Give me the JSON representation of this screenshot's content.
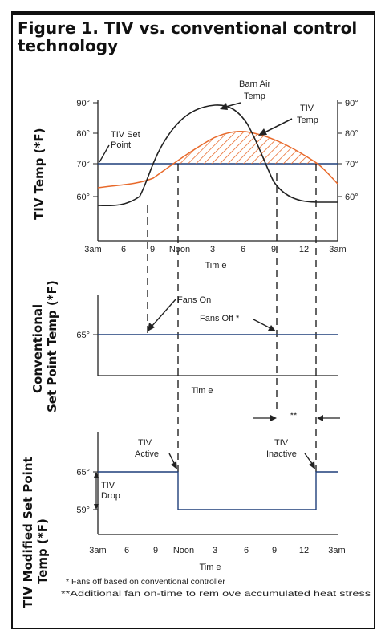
{
  "title": "Figure 1. TIV vs. conventional control technology",
  "panel1": {
    "ylabel": "TIV Temp (*F)",
    "yticks": [
      "90°",
      "80°",
      "70°",
      "60°"
    ],
    "xticks": [
      "3am",
      "6",
      "9",
      "Noon",
      "3",
      "6",
      "9",
      "12",
      "3am"
    ],
    "xlabel": "Tim e",
    "ann_barn": [
      "Barn Air",
      "Temp"
    ],
    "ann_tiv": [
      "TIV",
      "Temp"
    ],
    "ann_setpoint": [
      "TIV Set",
      "Point"
    ]
  },
  "panel2": {
    "ylabel": [
      "Conventional",
      "Set Point Temp (*F)"
    ],
    "ytick": "65°",
    "fans_on": "Fans On",
    "fans_off": "Fans Off *",
    "xlabel": "Tim e",
    "interval": "**"
  },
  "panel3": {
    "ylabel": [
      "TIV Modified Set Point",
      "Temp (*F)"
    ],
    "yticks": [
      "65°",
      "59°"
    ],
    "tiv_drop": [
      "TIV",
      "Drop"
    ],
    "tiv_active": [
      "TIV",
      "Active"
    ],
    "tiv_inactive": [
      "TIV",
      "Inactive"
    ],
    "xticks": [
      "3am",
      "6",
      "9",
      "Noon",
      "3",
      "6",
      "9",
      "12",
      "3am"
    ],
    "xlabel": "Tim e"
  },
  "footnotes": [
    "* Fans off based on conventional controller",
    "**Additional fan on-time to rem ove accumulated heat stress"
  ],
  "colors": {
    "barn": "#222222",
    "tiv": "#e8692a",
    "setpoint": "#1f3f7a",
    "border": "#111111"
  }
}
